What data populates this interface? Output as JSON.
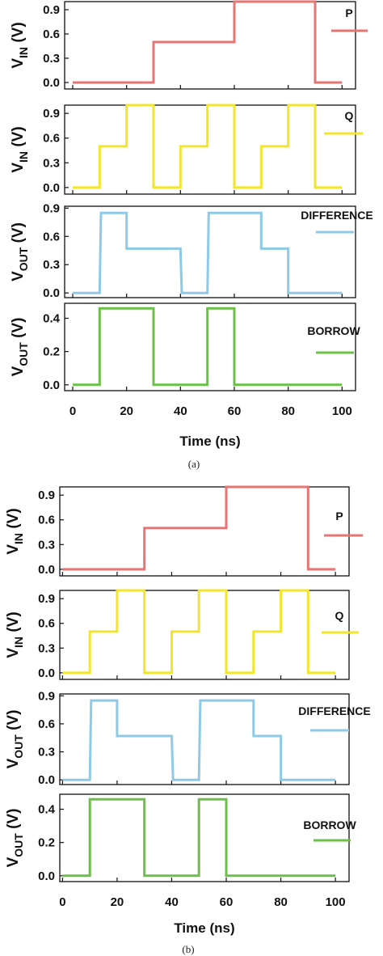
{
  "chart_data": [
    {
      "type": "line",
      "caption": "(a)",
      "xlabel": "Time (ns)",
      "xlim": [
        -3,
        105
      ],
      "xticks": [
        "0",
        "20",
        "40",
        "60",
        "80",
        "100"
      ],
      "panels": [
        {
          "ylabel_main": "V",
          "ylabel_sub": "IN",
          "ylabel_unit": " (V)",
          "ylim": [
            -0.08,
            1.0
          ],
          "yticks": [
            "0.0",
            "0.3",
            "0.6",
            "0.9"
          ],
          "yvalues": [
            0,
            0.3,
            0.6,
            0.9
          ],
          "series": [
            {
              "name": "P",
              "color": "#e87474",
              "x": [
                0,
                30,
                30,
                60,
                60,
                90,
                90,
                100
              ],
              "y": [
                0,
                0,
                0.5,
                0.5,
                1,
                1,
                0,
                0
              ]
            }
          ]
        },
        {
          "ylabel_main": "V",
          "ylabel_sub": "IN",
          "ylabel_unit": " (V)",
          "ylim": [
            -0.08,
            1.0
          ],
          "yticks": [
            "0.0",
            "0.3",
            "0.6",
            "0.9"
          ],
          "yvalues": [
            0,
            0.3,
            0.6,
            0.9
          ],
          "series": [
            {
              "name": "Q",
              "color": "#f3e529",
              "x": [
                0,
                10,
                10,
                20,
                20,
                30,
                30,
                40,
                40,
                50,
                50,
                60,
                60,
                70,
                70,
                80,
                80,
                90,
                90,
                100
              ],
              "y": [
                0,
                0,
                0.5,
                0.5,
                1,
                1,
                0,
                0,
                0.5,
                0.5,
                1,
                1,
                0,
                0,
                0.5,
                0.5,
                1,
                1,
                0,
                0
              ]
            }
          ]
        },
        {
          "ylabel_main": "V",
          "ylabel_sub": "OUT",
          "ylabel_unit": " (V)",
          "ylim": [
            -0.05,
            0.92
          ],
          "yticks": [
            "0.0",
            "0.3",
            "0.6",
            "0.9"
          ],
          "yvalues": [
            0,
            0.3,
            0.6,
            0.9
          ],
          "series": [
            {
              "name": "DIFFERENCE",
              "color": "#8ecae6",
              "x": [
                0,
                10,
                10.5,
                20,
                20,
                30,
                40,
                40.5,
                50,
                50.5,
                60,
                70,
                70,
                80,
                80,
                100
              ],
              "y": [
                0,
                0,
                0.85,
                0.85,
                0.47,
                0.47,
                0.47,
                0,
                0,
                0.85,
                0.85,
                0.85,
                0.47,
                0.47,
                0,
                0
              ]
            }
          ]
        },
        {
          "ylabel_main": "V",
          "ylabel_sub": "OUT",
          "ylabel_unit": " (V)",
          "ylim": [
            -0.035,
            0.49
          ],
          "yticks": [
            "0.0",
            "0.2",
            "0.4"
          ],
          "yvalues": [
            0,
            0.2,
            0.4
          ],
          "series": [
            {
              "name": "BORROW",
              "color": "#6cc04a",
              "x": [
                0,
                10,
                10,
                30,
                30,
                50,
                50,
                60,
                60,
                100
              ],
              "y": [
                0,
                0,
                0.46,
                0.46,
                0,
                0,
                0.46,
                0.46,
                0,
                0
              ]
            }
          ]
        }
      ]
    },
    {
      "type": "line",
      "caption": "(b)",
      "xlabel": "Time (ns)",
      "xlim": [
        -1,
        105
      ],
      "xticks": [
        "0",
        "20",
        "40",
        "60",
        "80",
        "100"
      ],
      "panels": [
        {
          "ylabel_main": "V",
          "ylabel_sub": "IN",
          "ylabel_unit": " (V)",
          "ylim": [
            -0.08,
            1.0
          ],
          "yticks": [
            "0.0",
            "0.3",
            "0.6",
            "0.9"
          ],
          "yvalues": [
            0,
            0.3,
            0.6,
            0.9
          ],
          "series": [
            {
              "name": "P",
              "color": "#e87474",
              "x": [
                0,
                30,
                30,
                60,
                60,
                90,
                90,
                100
              ],
              "y": [
                0,
                0,
                0.5,
                0.5,
                1,
                1,
                0,
                0
              ]
            }
          ]
        },
        {
          "ylabel_main": "V",
          "ylabel_sub": "IN",
          "ylabel_unit": " (V)",
          "ylim": [
            -0.08,
            1.0
          ],
          "yticks": [
            "0.0",
            "0.3",
            "0.6",
            "0.9"
          ],
          "yvalues": [
            0,
            0.3,
            0.6,
            0.9
          ],
          "series": [
            {
              "name": "Q",
              "color": "#f3e529",
              "x": [
                0,
                10,
                10,
                20,
                20,
                30,
                30,
                40,
                40,
                50,
                50,
                60,
                60,
                70,
                70,
                80,
                80,
                90,
                90,
                100
              ],
              "y": [
                0,
                0,
                0.5,
                0.5,
                1,
                1,
                0,
                0,
                0.5,
                0.5,
                1,
                1,
                0,
                0,
                0.5,
                0.5,
                1,
                1,
                0,
                0
              ]
            }
          ]
        },
        {
          "ylabel_main": "V",
          "ylabel_sub": "OUT",
          "ylabel_unit": " (V)",
          "ylim": [
            -0.05,
            0.92
          ],
          "yticks": [
            "0.0",
            "0.3",
            "0.6",
            "0.9"
          ],
          "yvalues": [
            0,
            0.3,
            0.6,
            0.9
          ],
          "series": [
            {
              "name": "DIFFERENCE",
              "color": "#8ecae6",
              "x": [
                0,
                10,
                10.5,
                20,
                20,
                30,
                40,
                40.5,
                50,
                50.5,
                60,
                70,
                70,
                80,
                80,
                100
              ],
              "y": [
                0,
                0,
                0.85,
                0.85,
                0.47,
                0.47,
                0.47,
                0,
                0,
                0.85,
                0.85,
                0.85,
                0.47,
                0.47,
                0,
                0
              ]
            }
          ]
        },
        {
          "ylabel_main": "V",
          "ylabel_sub": "OUT",
          "ylabel_unit": " (V)",
          "ylim": [
            -0.035,
            0.49
          ],
          "yticks": [
            "0.0",
            "0.2",
            "0.4"
          ],
          "yvalues": [
            0,
            0.2,
            0.4
          ],
          "series": [
            {
              "name": "BORROW",
              "color": "#6cc04a",
              "x": [
                0,
                10,
                10,
                30,
                30,
                50,
                50,
                60,
                60,
                100
              ],
              "y": [
                0,
                0,
                0.46,
                0.46,
                0,
                0,
                0.46,
                0.46,
                0,
                0
              ]
            }
          ]
        }
      ]
    }
  ]
}
